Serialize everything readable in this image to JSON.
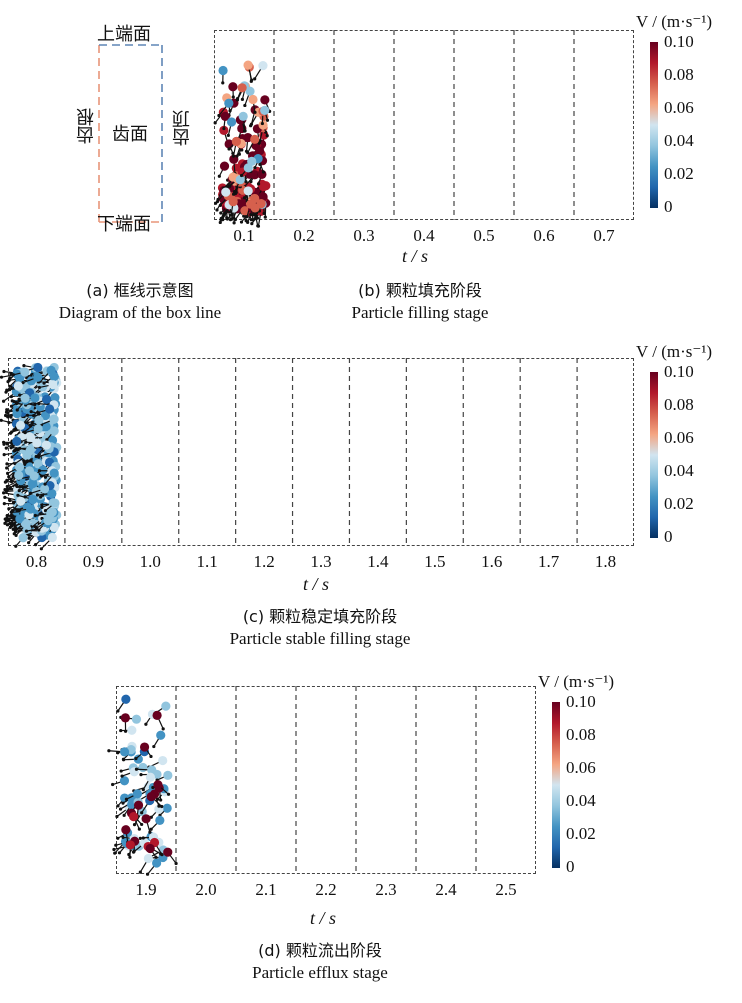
{
  "panel_a": {
    "top_face": "上端面",
    "bottom_face": "下端面",
    "root": "齿根",
    "face": "齿面",
    "tip": "齿顶",
    "caption_cn": "(a) 框线示意图",
    "caption_en": "Diagram of the box line"
  },
  "panel_b": {
    "times": [
      "0.1",
      "0.2",
      "0.3",
      "0.4",
      "0.5",
      "0.6",
      "0.7"
    ],
    "axis": "t / s",
    "caption_cn": "(b) 颗粒填充阶段",
    "caption_en": "Particle filling stage"
  },
  "panel_c": {
    "times": [
      "0.8",
      "0.9",
      "1.0",
      "1.1",
      "1.2",
      "1.3",
      "1.4",
      "1.5",
      "1.6",
      "1.7",
      "1.8"
    ],
    "axis": "t / s",
    "caption_cn": "(c) 颗粒稳定填充阶段",
    "caption_en": "Particle stable filling stage"
  },
  "panel_d": {
    "times": [
      "1.9",
      "2.0",
      "2.1",
      "2.2",
      "2.3",
      "2.4",
      "2.5"
    ],
    "axis": "t / s",
    "caption_cn": "(d) 颗粒流出阶段",
    "caption_en": "Particle efflux stage"
  },
  "colorbar": {
    "title": "V / (m·s⁻¹)",
    "ticks": [
      "0.10",
      "0.08",
      "0.06",
      "0.04",
      "0.02",
      "0"
    ],
    "colors": [
      "#67001f",
      "#b2182b",
      "#d6604d",
      "#f4a582",
      "#d1e5f0",
      "#92c5de",
      "#4393c3",
      "#2166ac",
      "#053061"
    ]
  }
}
